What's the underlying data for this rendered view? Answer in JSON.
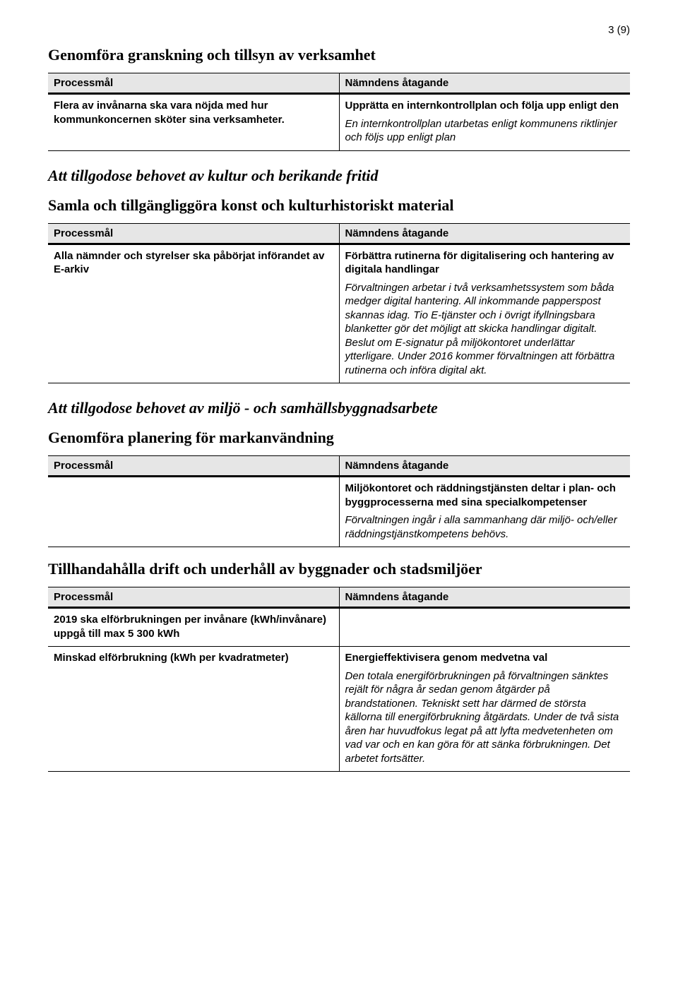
{
  "page_number": "3 (9)",
  "section1": {
    "title": "Genomföra granskning och tillsyn av verksamhet",
    "table": {
      "col_left": "Processmål",
      "col_right": "Nämndens åtagande",
      "rows": [
        {
          "left_bold": "Flera av invånarna ska vara nöjda med hur kommunkoncernen sköter sina verksamheter.",
          "right_bold": "Upprätta en internkontrollplan och följa upp enligt den",
          "right_italic": "En internkontrollplan utarbetas enligt kommunens riktlinjer och följs upp enligt plan"
        }
      ]
    }
  },
  "section2": {
    "heading": "Att tillgodose behovet av kultur och berikande fritid",
    "subheading": "Samla och tillgängliggöra konst och kulturhistoriskt material",
    "table": {
      "col_left": "Processmål",
      "col_right": "Nämndens åtagande",
      "rows": [
        {
          "left_bold": "Alla nämnder och styrelser ska påbörjat införandet av E-arkiv",
          "right_bold": "Förbättra rutinerna för digitalisering och hantering av digitala handlingar",
          "right_italic": "Förvaltningen arbetar i två verksamhetssystem som båda medger digital hantering. All inkommande papperspost skannas idag. Tio E-tjänster och i övrigt ifyllningsbara blanketter gör det möjligt att skicka handlingar digitalt. Beslut om E-signatur på miljökontoret underlättar ytterligare. Under 2016 kommer förvaltningen att förbättra rutinerna och införa digital akt."
        }
      ]
    }
  },
  "section3": {
    "heading": "Att tillgodose behovet av miljö - och samhällsbyggnadsarbete",
    "subheading": "Genomföra planering för markanvändning",
    "table": {
      "col_left": "Processmål",
      "col_right": "Nämndens åtagande",
      "rows": [
        {
          "left_bold": "",
          "right_bold": "Miljökontoret och räddningstjänsten deltar i plan- och byggprocesserna med sina specialkompetenser",
          "right_italic": "Förvaltningen ingår i alla sammanhang där miljö- och/eller räddningstjänstkompetens behövs."
        }
      ]
    }
  },
  "section4": {
    "subheading": "Tillhandahålla drift och underhåll av byggnader och stadsmiljöer",
    "table": {
      "col_left": "Processmål",
      "col_right": "Nämndens åtagande",
      "rows": [
        {
          "left_bold": "2019 ska elförbrukningen per invånare (kWh/invånare) uppgå till max 5 300 kWh",
          "right_bold": "",
          "right_italic": ""
        },
        {
          "left_bold": "Minskad elförbrukning (kWh per kvadratmeter)",
          "right_bold": "Energieffektivisera genom medvetna val",
          "right_italic": "Den totala energiförbrukningen på förvaltningen sänktes rejält för några år sedan genom åtgärder på brandstationen. Tekniskt sett har därmed de största källorna till energiförbrukning åtgärdats. Under de två sista åren har huvudfokus legat på att lyfta medvetenheten om vad var och en kan göra för att sänka förbrukningen. Det arbetet fortsätter."
        }
      ]
    }
  }
}
